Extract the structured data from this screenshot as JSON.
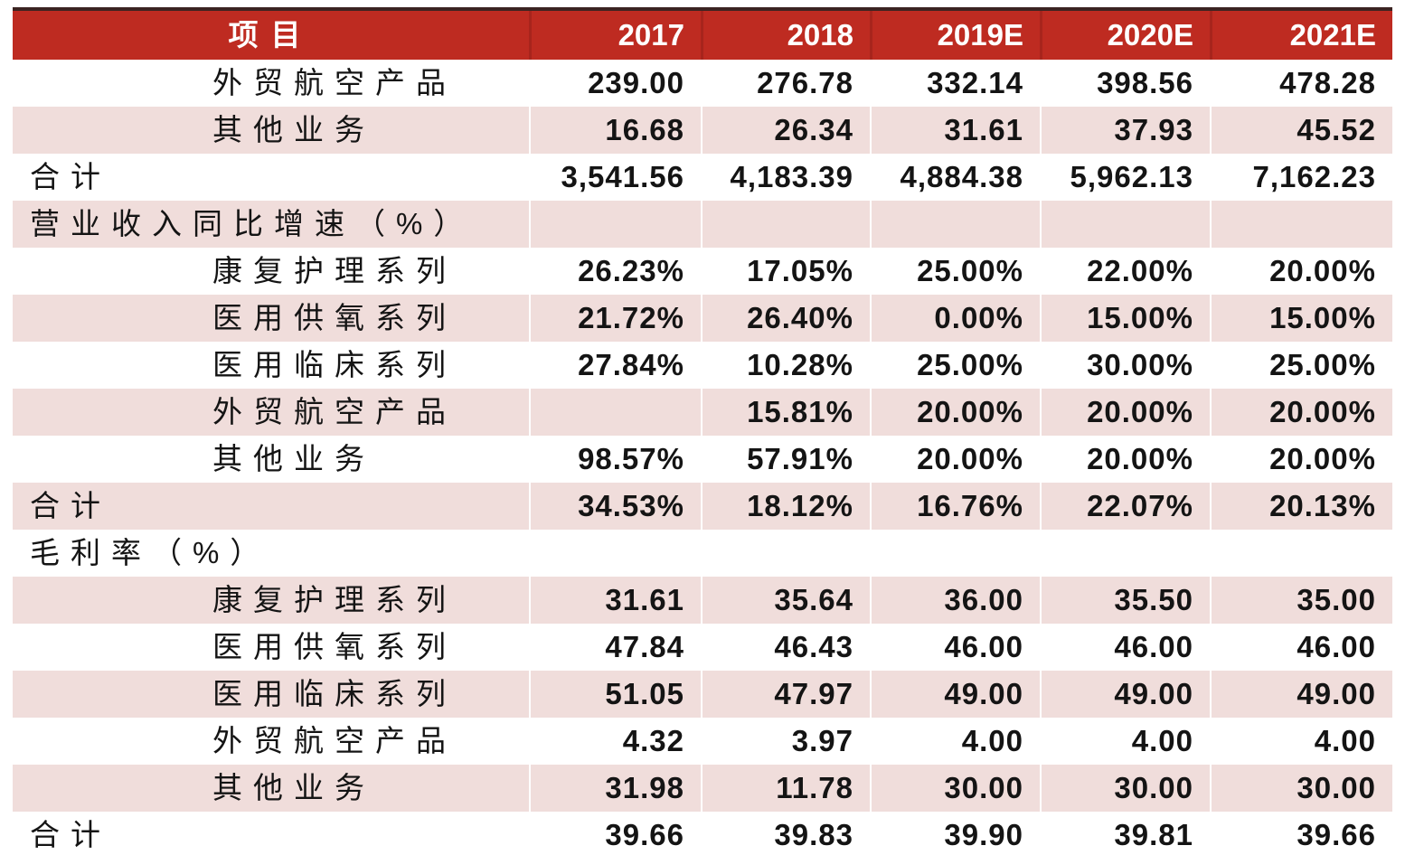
{
  "table": {
    "header": {
      "item_label": "项目",
      "columns": [
        "2017",
        "2018",
        "2019E",
        "2020E",
        "2021E"
      ]
    },
    "rows": [
      {
        "type": "item",
        "label": "外贸航空产品",
        "values": [
          "239.00",
          "276.78",
          "332.14",
          "398.56",
          "478.28"
        ]
      },
      {
        "type": "item",
        "label": "其他业务",
        "values": [
          "16.68",
          "26.34",
          "31.61",
          "37.93",
          "45.52"
        ]
      },
      {
        "type": "total",
        "label": "合计",
        "values": [
          "3,541.56",
          "4,183.39",
          "4,884.38",
          "5,962.13",
          "7,162.23"
        ]
      },
      {
        "type": "section",
        "label": "营业收入同比增速（%）",
        "values": [
          "",
          "",
          "",
          "",
          ""
        ]
      },
      {
        "type": "item",
        "label": "康复护理系列",
        "values": [
          "26.23%",
          "17.05%",
          "25.00%",
          "22.00%",
          "20.00%"
        ]
      },
      {
        "type": "item",
        "label": "医用供氧系列",
        "values": [
          "21.72%",
          "26.40%",
          "0.00%",
          "15.00%",
          "15.00%"
        ]
      },
      {
        "type": "item",
        "label": "医用临床系列",
        "values": [
          "27.84%",
          "10.28%",
          "25.00%",
          "30.00%",
          "25.00%"
        ]
      },
      {
        "type": "item",
        "label": "外贸航空产品",
        "values": [
          "",
          "15.81%",
          "20.00%",
          "20.00%",
          "20.00%"
        ]
      },
      {
        "type": "item",
        "label": "其他业务",
        "values": [
          "98.57%",
          "57.91%",
          "20.00%",
          "20.00%",
          "20.00%"
        ]
      },
      {
        "type": "total",
        "label": "合计",
        "values": [
          "34.53%",
          "18.12%",
          "16.76%",
          "22.07%",
          "20.13%"
        ]
      },
      {
        "type": "section",
        "label": "毛利率（%）",
        "values": [
          "",
          "",
          "",
          "",
          ""
        ]
      },
      {
        "type": "item",
        "label": "康复护理系列",
        "values": [
          "31.61",
          "35.64",
          "36.00",
          "35.50",
          "35.00"
        ]
      },
      {
        "type": "item",
        "label": "医用供氧系列",
        "values": [
          "47.84",
          "46.43",
          "46.00",
          "46.00",
          "46.00"
        ]
      },
      {
        "type": "item",
        "label": "医用临床系列",
        "values": [
          "51.05",
          "47.97",
          "49.00",
          "49.00",
          "49.00"
        ]
      },
      {
        "type": "item",
        "label": "外贸航空产品",
        "values": [
          "4.32",
          "3.97",
          "4.00",
          "4.00",
          "4.00"
        ]
      },
      {
        "type": "item",
        "label": "其他业务",
        "values": [
          "31.98",
          "11.78",
          "30.00",
          "30.00",
          "30.00"
        ]
      },
      {
        "type": "total",
        "label": "合计",
        "values": [
          "39.66",
          "39.83",
          "39.90",
          "39.81",
          "39.66"
        ]
      }
    ],
    "colors": {
      "header_bg": "#BE2B21",
      "header_separator": "#A7241C",
      "header_text": "#FFFFFF",
      "alt_row_bg": "#F0DDDB",
      "top_rule": "#3B2422",
      "body_text": "#141414"
    }
  }
}
